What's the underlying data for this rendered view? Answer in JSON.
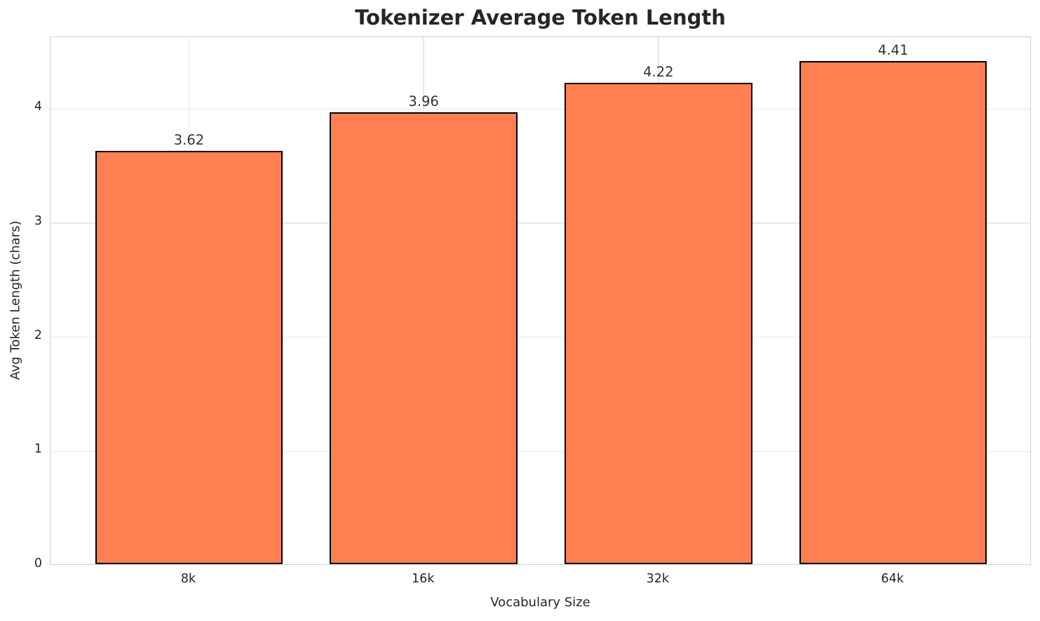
{
  "chart_data": {
    "type": "bar",
    "title": "Tokenizer Average Token Length",
    "xlabel": "Vocabulary Size",
    "ylabel": "Avg Token Length (chars)",
    "categories": [
      "8k",
      "16k",
      "32k",
      "64k"
    ],
    "values": [
      3.62,
      3.96,
      4.22,
      4.41
    ],
    "value_labels": [
      "3.62",
      "3.96",
      "4.22",
      "4.41"
    ],
    "yticks": [
      0,
      1,
      2,
      3,
      4
    ],
    "ytick_labels": [
      "0",
      "1",
      "2",
      "3",
      "4"
    ],
    "ylim": [
      0,
      4.63
    ],
    "grid": "on",
    "legend": "none",
    "bar_color": "#FF7F50",
    "bar_edge_color": "#000000",
    "grid_color": "#e7e7e7",
    "spine_color": "#d0d0d0",
    "text_color": "#262626"
  }
}
